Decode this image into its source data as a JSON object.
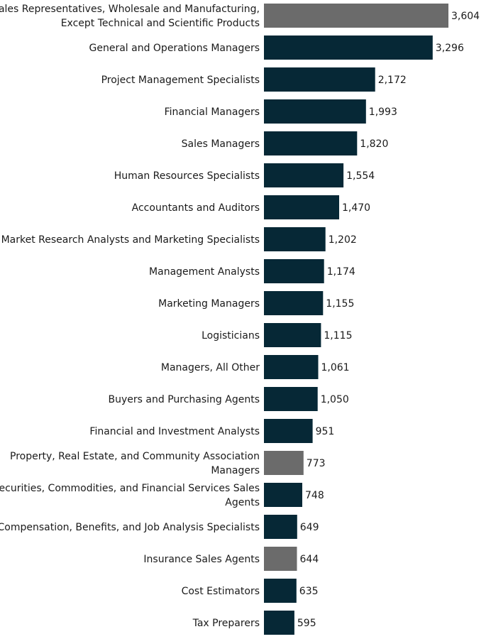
{
  "chart_data": {
    "type": "bar",
    "orientation": "horizontal",
    "categories": [
      [
        "Sales Representatives, Wholesale and Manufacturing,",
        "Except Technical and Scientific Products"
      ],
      [
        "General and Operations Managers"
      ],
      [
        "Project Management Specialists"
      ],
      [
        "Financial Managers"
      ],
      [
        "Sales Managers"
      ],
      [
        "Human Resources Specialists"
      ],
      [
        "Accountants and Auditors"
      ],
      [
        "Market Research Analysts and Marketing Specialists"
      ],
      [
        "Management Analysts"
      ],
      [
        "Marketing Managers"
      ],
      [
        "Logisticians"
      ],
      [
        "Managers, All Other"
      ],
      [
        "Buyers and Purchasing Agents"
      ],
      [
        "Financial and Investment Analysts"
      ],
      [
        "Property, Real Estate, and Community Association",
        "Managers"
      ],
      [
        "Securities, Commodities, and Financial Services Sales",
        "Agents"
      ],
      [
        "Compensation, Benefits, and Job Analysis Specialists"
      ],
      [
        "Insurance Sales Agents"
      ],
      [
        "Cost Estimators"
      ],
      [
        "Tax Preparers"
      ]
    ],
    "values": [
      3604,
      3296,
      2172,
      1993,
      1820,
      1554,
      1470,
      1202,
      1174,
      1155,
      1115,
      1061,
      1050,
      951,
      773,
      748,
      649,
      644,
      635,
      595
    ],
    "value_labels": [
      "3,604",
      "3,296",
      "2,172",
      "1,993",
      "1,820",
      "1,554",
      "1,470",
      "1,202",
      "1,174",
      "1,155",
      "1,115",
      "1,061",
      "1,050",
      "951",
      "773",
      "748",
      "649",
      "644",
      "635",
      "595"
    ],
    "highlighted": [
      true,
      false,
      false,
      false,
      false,
      false,
      false,
      false,
      false,
      false,
      false,
      false,
      false,
      false,
      true,
      false,
      false,
      true,
      false,
      false
    ],
    "colors": {
      "primary": "#062836",
      "highlight": "#6b6b6b",
      "text": "#1a1a1a"
    },
    "title": "",
    "xlabel": "",
    "ylabel": "",
    "xlim": [
      0,
      3604
    ],
    "grid": false,
    "legend": "none"
  }
}
